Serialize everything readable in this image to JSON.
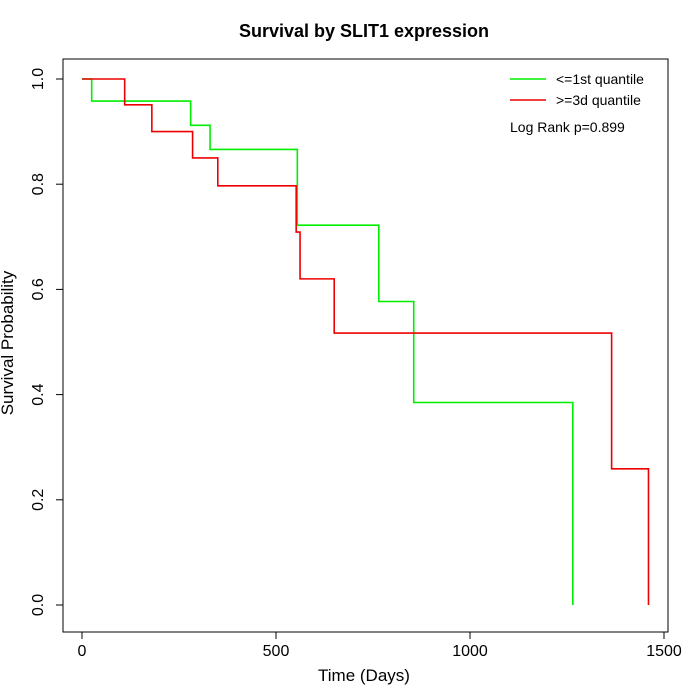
{
  "chart_data": {
    "type": "line",
    "title": "Survival by SLIT1 expression",
    "xlabel": "Time (Days)",
    "ylabel": "Survival Probability",
    "xlim": [
      0,
      1500
    ],
    "ylim": [
      0,
      1.0
    ],
    "xticks": [
      0,
      500,
      1000,
      1500
    ],
    "xtick_labels": [
      "0",
      "500",
      "1000",
      "1500"
    ],
    "yticks": [
      0.0,
      0.2,
      0.4,
      0.6,
      0.8,
      1.0
    ],
    "ytick_labels": [
      "0.0",
      "0.2",
      "0.4",
      "0.6",
      "0.8",
      "1.0"
    ],
    "grid": false,
    "legend_position": "top-right",
    "annotation": "Log Rank p=0.899",
    "series": [
      {
        "name": "<=1st quantile",
        "color": "#00ee00",
        "step_x": [
          0,
          25,
          280,
          330,
          555,
          765,
          855,
          1265,
          1265
        ],
        "step_y": [
          1.0,
          0.958,
          0.912,
          0.866,
          0.722,
          0.577,
          0.385,
          0.385,
          0.0
        ]
      },
      {
        "name": ">=3d quantile",
        "color": "#ee0000",
        "step_x": [
          0,
          110,
          180,
          285,
          350,
          552,
          562,
          650,
          1365,
          1460,
          1460
        ],
        "step_y": [
          1.0,
          0.951,
          0.9,
          0.85,
          0.797,
          0.709,
          0.62,
          0.517,
          0.259,
          0.259,
          0.0
        ]
      }
    ]
  }
}
